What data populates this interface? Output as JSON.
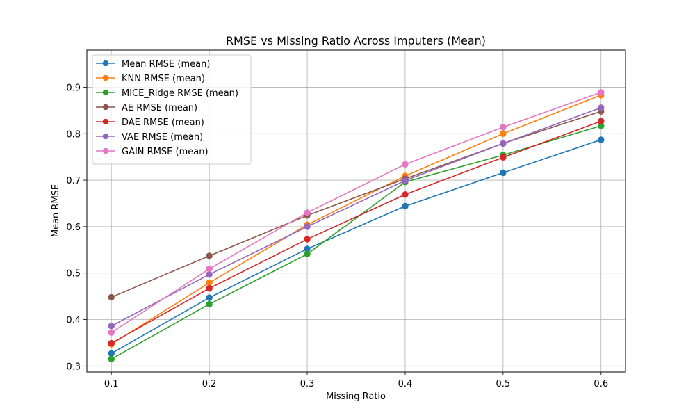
{
  "chart_data": {
    "type": "line",
    "title": "RMSE vs Missing Ratio Across Imputers (Mean)",
    "xlabel": "Missing Ratio",
    "ylabel": "Mean RMSE",
    "x": [
      0.1,
      0.2,
      0.3,
      0.4,
      0.5,
      0.6
    ],
    "x_tick_labels": [
      "0.1",
      "0.2",
      "0.3",
      "0.4",
      "0.5",
      "0.6"
    ],
    "y_ticks": [
      0.3,
      0.4,
      0.5,
      0.6,
      0.7,
      0.8,
      0.9
    ],
    "y_tick_labels": [
      "0.3",
      "0.4",
      "0.5",
      "0.6",
      "0.7",
      "0.8",
      "0.9"
    ],
    "xlim": [
      0.075,
      0.625
    ],
    "ylim": [
      0.287,
      0.98
    ],
    "grid": true,
    "legend_position": "top-left",
    "series": [
      {
        "name": "Mean RMSE (mean)",
        "color": "#1f77b4",
        "marker": "circle",
        "values": [
          0.327,
          0.447,
          0.552,
          0.644,
          0.716,
          0.787
        ]
      },
      {
        "name": "KNN RMSE (mean)",
        "color": "#ff7f0e",
        "marker": "circle",
        "values": [
          0.347,
          0.479,
          0.604,
          0.709,
          0.8,
          0.883
        ]
      },
      {
        "name": "MICE_Ridge RMSE (mean)",
        "color": "#2ca02c",
        "marker": "circle",
        "values": [
          0.315,
          0.433,
          0.541,
          0.696,
          0.754,
          0.817
        ]
      },
      {
        "name": "AE RMSE (mean)",
        "color": "#8c564b",
        "marker": "circle",
        "values": [
          0.448,
          0.537,
          0.624,
          0.703,
          0.779,
          0.848
        ]
      },
      {
        "name": "DAE RMSE (mean)",
        "color": "#d62728",
        "marker": "circle",
        "values": [
          0.349,
          0.467,
          0.573,
          0.669,
          0.749,
          0.827
        ]
      },
      {
        "name": "VAE RMSE (mean)",
        "color": "#9467bd",
        "marker": "circle",
        "values": [
          0.386,
          0.497,
          0.6,
          0.699,
          0.779,
          0.856
        ]
      },
      {
        "name": "GAIN RMSE (mean)",
        "color": "#e377c2",
        "marker": "circle",
        "values": [
          0.372,
          0.509,
          0.63,
          0.734,
          0.814,
          0.889
        ]
      }
    ]
  }
}
